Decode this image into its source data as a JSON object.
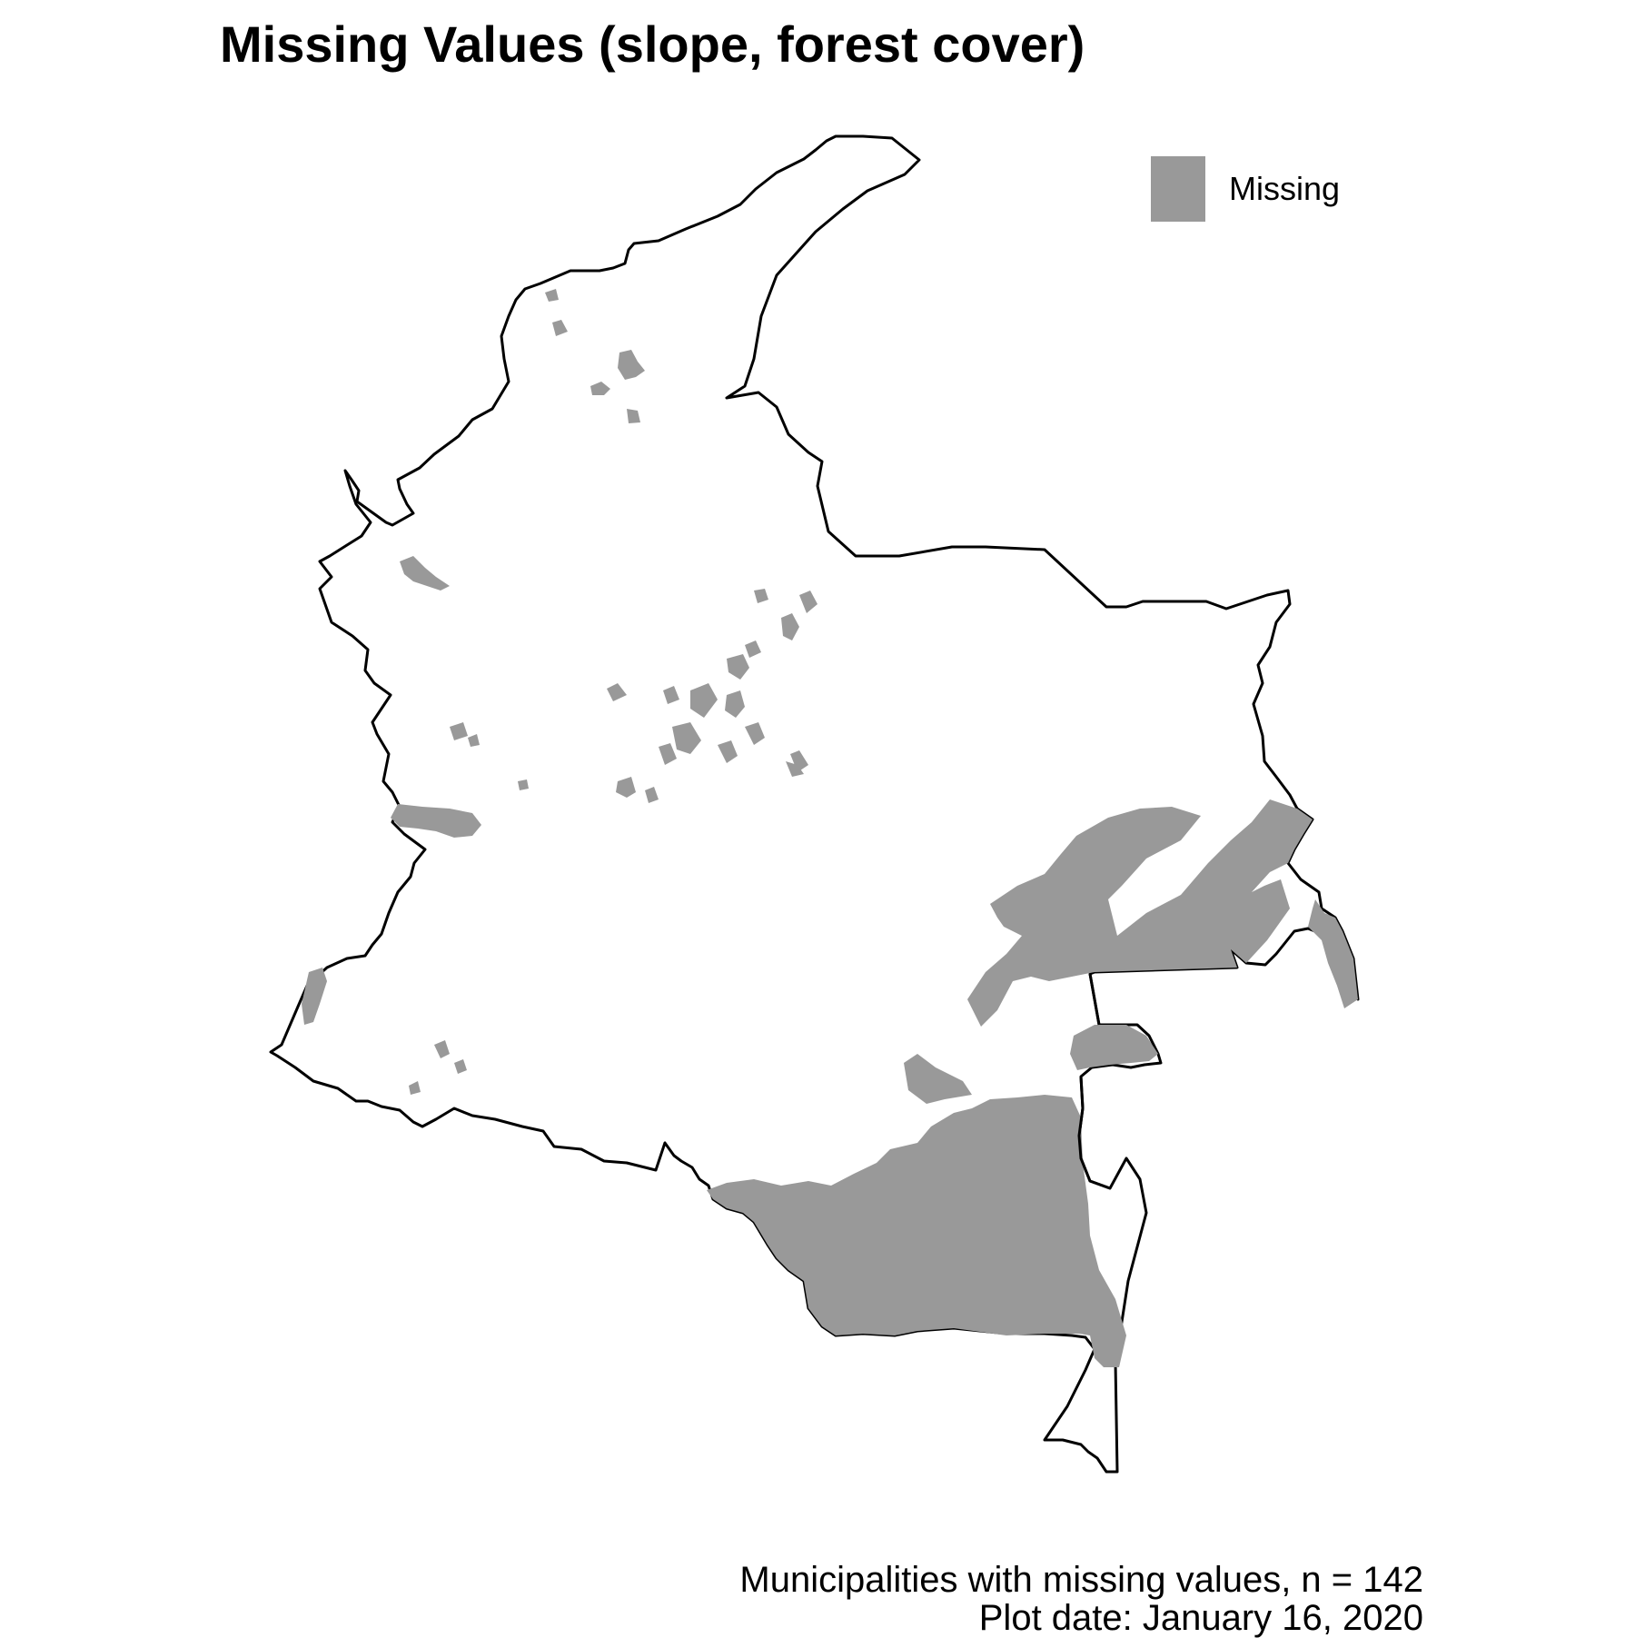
{
  "title": "Missing Values (slope, forest cover)",
  "legend": {
    "items": [
      {
        "label": "Missing",
        "color": "#999999"
      }
    ]
  },
  "caption": {
    "line1": "Municipalities with missing values, n = 142",
    "line2": "Plot date: January 16, 2020"
  },
  "map": {
    "region_fill": "#ffffff",
    "border_color": "#000000",
    "missing_fill": "#999999"
  }
}
